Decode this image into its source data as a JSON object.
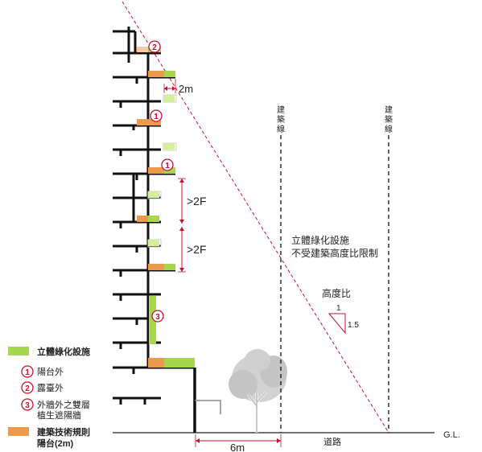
{
  "dimensions": {
    "floor_gap_2m": "2m",
    "span_2f_upper": ">2F",
    "span_2f_lower": ">2F",
    "setback_6m": "6m"
  },
  "building_lines": {
    "left_label": [
      "建",
      "築",
      "線"
    ],
    "right_label": [
      "建",
      "築",
      "線"
    ]
  },
  "notes": {
    "exempt_line1": "立體綠化設施",
    "exempt_line2": "不受建築高度比限制",
    "height_ratio_title": "高度比",
    "ratio_rise": "1",
    "ratio_run": "1.5"
  },
  "ground": {
    "road_label": "道路",
    "gl_label": "G.L."
  },
  "markers": {
    "m1": "1",
    "m2": "2",
    "m3": "3"
  },
  "legend": {
    "green_label": "立體綠化設施",
    "item1_num": "1",
    "item1_label": "陽台外",
    "item2_num": "2",
    "item2_label": "露臺外",
    "item3_num": "3",
    "item3_label_line1": "外牆外之雙層",
    "item3_label_line2": "植生遮陽牆",
    "orange_label_line1": "建築技術規則",
    "orange_label_line2": "陽台(2m)"
  },
  "colors": {
    "green": "#a7d64f",
    "light_green": "#d4ef9a",
    "orange": "#ee9a4d",
    "peach": "#f6c8a3",
    "red": "#c8102e",
    "slab": "#111111",
    "tree": "#c9c9c9"
  }
}
